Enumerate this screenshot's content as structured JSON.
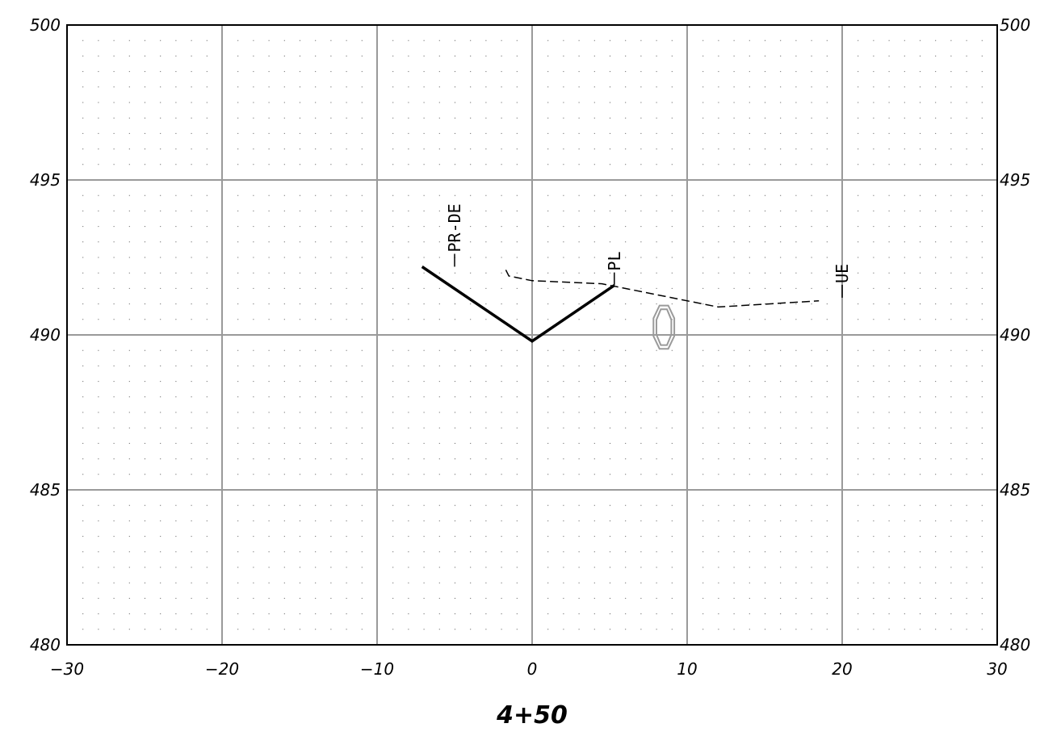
{
  "chart_data": {
    "type": "line",
    "title": "4+50",
    "xlim": [
      -30,
      30
    ],
    "ylim": [
      480,
      500
    ],
    "x_ticks": [
      -30,
      -20,
      -10,
      0,
      10,
      20,
      30
    ],
    "x_tick_labels": [
      "−30",
      "−20",
      "−10",
      "0",
      "10",
      "20",
      "30"
    ],
    "y_ticks": [
      480,
      485,
      490,
      495,
      500
    ],
    "y_tick_labels": [
      "480",
      "485",
      "490",
      "495",
      "500"
    ],
    "grid": true,
    "minor_grid": "dotted",
    "series": [
      {
        "key": "proposed",
        "style": "solid-thick",
        "color": "#000000",
        "points": [
          [
            -7.1,
            492.2
          ],
          [
            0,
            489.8
          ],
          [
            5.3,
            491.6
          ]
        ]
      },
      {
        "key": "existing",
        "style": "dashed",
        "color": "#000000",
        "points": [
          [
            -1.7,
            492.1
          ],
          [
            -1.5,
            491.9
          ],
          [
            0,
            491.75
          ],
          [
            4.5,
            491.65
          ],
          [
            12,
            490.9
          ],
          [
            18.5,
            491.1
          ]
        ]
      }
    ],
    "annotations": [
      {
        "text": "PR-DE",
        "x": -5.0,
        "y": 492.2,
        "rotate": -90
      },
      {
        "text": "PL",
        "x": 5.3,
        "y": 491.6,
        "rotate": -90
      },
      {
        "text": "UE",
        "x": 20.0,
        "y": 491.2,
        "rotate": -90
      }
    ],
    "pipe": {
      "x": 8.5,
      "y": 490.25,
      "color": "#9a9a9a"
    }
  }
}
